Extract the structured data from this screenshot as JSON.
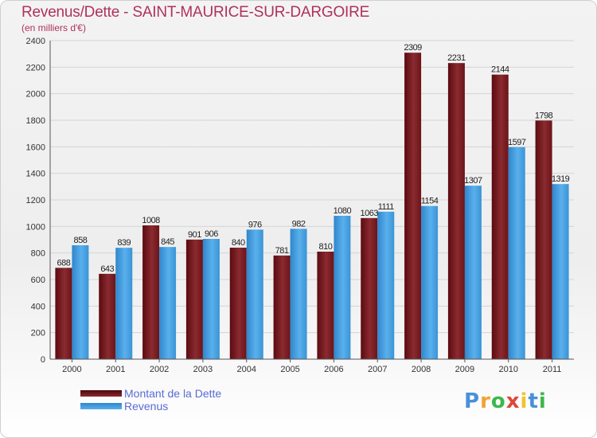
{
  "header": {
    "title": "Revenus/Dette - SAINT-MAURICE-SUR-DARGOIRE",
    "subtitle": "(en milliers d'€)"
  },
  "chart_data": {
    "type": "bar",
    "categories": [
      "2000",
      "2001",
      "2002",
      "2003",
      "2004",
      "2005",
      "2006",
      "2007",
      "2008",
      "2009",
      "2010",
      "2011"
    ],
    "series": [
      {
        "name": "Montant de la Dette",
        "color": "#7a1a1f",
        "values": [
          688,
          643,
          1008,
          901,
          840,
          781,
          810,
          1063,
          2309,
          2231,
          2144,
          1798
        ]
      },
      {
        "name": "Revenus",
        "color": "#3f9bdc",
        "values": [
          858,
          839,
          845,
          906,
          976,
          982,
          1080,
          1111,
          1154,
          1307,
          1597,
          1319
        ]
      }
    ],
    "y_ticks": [
      0,
      200,
      400,
      600,
      800,
      1000,
      1200,
      1400,
      1600,
      1800,
      2000,
      2200,
      2400
    ],
    "ylim": [
      0,
      2400
    ],
    "grid": true,
    "legend_position": "bottom-left"
  },
  "legend": {
    "items": [
      {
        "label": "Montant de la Dette",
        "color": "#6b0f14"
      },
      {
        "label": "Revenus",
        "color": "#3f9bdc"
      }
    ]
  },
  "brand": {
    "letters": [
      "P",
      "r",
      "o",
      "x",
      "i",
      "t",
      "i"
    ],
    "colors": [
      "#4a90d9",
      "#f2a230",
      "#3db84a",
      "#e0463a",
      "#f2c230",
      "#4a90d9",
      "#3db84a"
    ]
  }
}
